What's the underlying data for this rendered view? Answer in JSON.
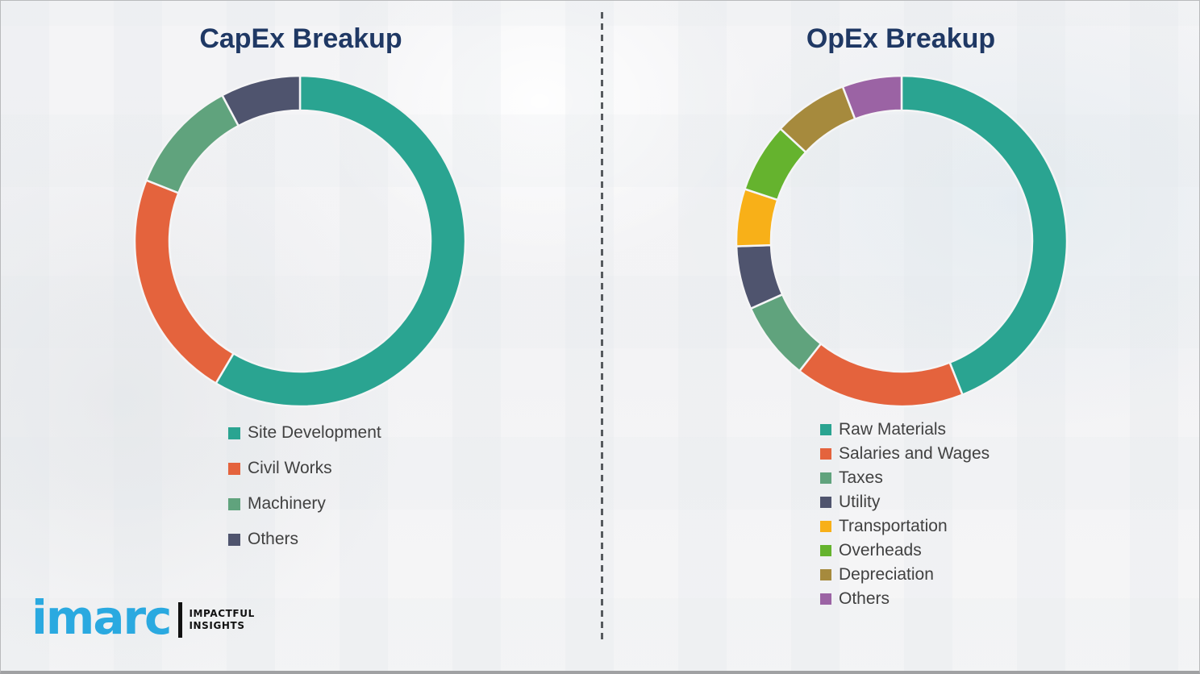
{
  "page": {
    "background_color": "#f4f4f6",
    "title_color": "#1f3864",
    "legend_text_color": "#414141",
    "divider_style": "vertical dashed gray line"
  },
  "chart_data": [
    {
      "type": "pie",
      "subtype": "donut",
      "title": "CapEx Breakup",
      "labels": [
        "Site Development",
        "Civil Works",
        "Machinery",
        "Others"
      ],
      "values": [
        58.5,
        22.5,
        11.2,
        7.8
      ],
      "colors": [
        "#2aa491",
        "#e4633d",
        "#60a37d",
        "#4f546e"
      ],
      "start_angle_deg": 0,
      "direction": "clockwise",
      "inner_radius_ratio": 0.79,
      "legend_position": "below-left",
      "data_labels_shown": false
    },
    {
      "type": "pie",
      "subtype": "donut",
      "title": "OpEx Breakup",
      "labels": [
        "Raw Materials",
        "Salaries and Wages",
        "Taxes",
        "Utility",
        "Transportation",
        "Overheads",
        "Depreciation",
        "Others"
      ],
      "values": [
        44.0,
        16.6,
        7.7,
        6.2,
        5.6,
        6.8,
        7.3,
        5.8
      ],
      "colors": [
        "#2aa491",
        "#e4633d",
        "#60a37d",
        "#4f546e",
        "#f8b018",
        "#65b32e",
        "#a68a3d",
        "#9b63a4"
      ],
      "start_angle_deg": 0,
      "direction": "clockwise",
      "inner_radius_ratio": 0.79,
      "legend_position": "below-left",
      "data_labels_shown": false
    }
  ],
  "logo": {
    "brand": "imarc",
    "tagline_line1": "IMPACTFUL",
    "tagline_line2": "INSIGHTS",
    "brand_color": "#2aa9e0"
  }
}
